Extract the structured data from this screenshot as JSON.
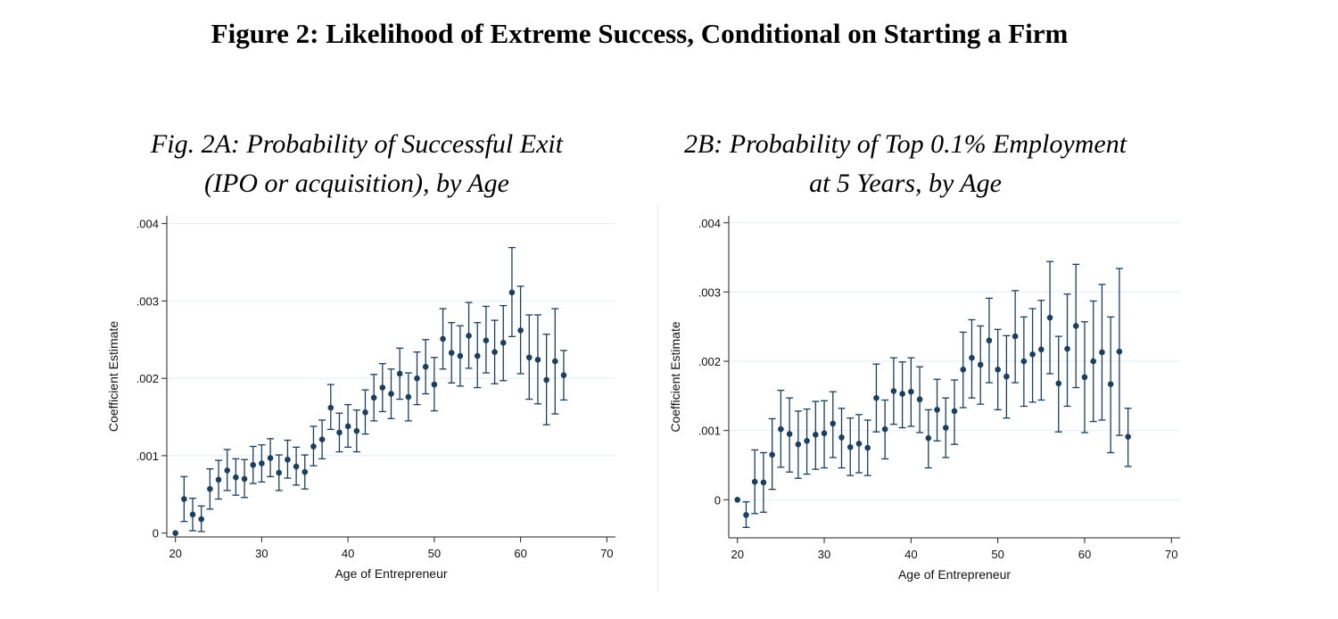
{
  "figure": {
    "title": "Figure 2: Likelihood of Extreme Success, Conditional on Starting a Firm"
  },
  "colors": {
    "marker": "#1c3f5e",
    "grid": "#e2eef3",
    "axis": "#222222"
  },
  "chart_data": [
    {
      "type": "scatter",
      "title_line1": "Fig. 2A: Probability of Successful Exit",
      "title_line2": "(IPO or acquisition), by Age",
      "xlabel": "Age of Entrepreneur",
      "ylabel": "Coefficient Estimate",
      "xlim": [
        19,
        71
      ],
      "ylim": [
        -5e-05,
        0.0041
      ],
      "xticks": [
        20,
        30,
        40,
        50,
        60,
        70
      ],
      "xtick_labels": [
        "20",
        "30",
        "40",
        "50",
        "60",
        "70"
      ],
      "yticks": [
        0,
        0.001,
        0.002,
        0.003,
        0.004
      ],
      "ytick_labels": [
        "0",
        ".001",
        ".002",
        ".003",
        ".004"
      ],
      "gridlines": [
        0.001,
        0.002,
        0.003,
        0.004
      ],
      "x": [
        20,
        21,
        22,
        23,
        24,
        25,
        26,
        27,
        28,
        29,
        30,
        31,
        32,
        33,
        34,
        35,
        36,
        37,
        38,
        39,
        40,
        41,
        42,
        43,
        44,
        45,
        46,
        47,
        48,
        49,
        50,
        51,
        52,
        53,
        54,
        55,
        56,
        57,
        58,
        59,
        60,
        61,
        62,
        63,
        64,
        65
      ],
      "values": [
        0.0,
        0.00044,
        0.00024,
        0.00018,
        0.00057,
        0.00069,
        0.00081,
        0.00072,
        0.0007,
        0.00088,
        0.0009,
        0.00097,
        0.00078,
        0.00095,
        0.00086,
        0.00079,
        0.00112,
        0.00121,
        0.00162,
        0.0013,
        0.00138,
        0.00132,
        0.00156,
        0.00175,
        0.00188,
        0.0018,
        0.00206,
        0.00176,
        0.002,
        0.00215,
        0.00192,
        0.00251,
        0.00233,
        0.00229,
        0.00255,
        0.00229,
        0.00249,
        0.00234,
        0.00246,
        0.00311,
        0.00262,
        0.00227,
        0.00224,
        0.00198,
        0.00222,
        0.00204
      ],
      "ci_low": [
        0.0,
        0.00015,
        3e-05,
        2e-05,
        0.00031,
        0.00044,
        0.00055,
        0.00049,
        0.00046,
        0.00064,
        0.00066,
        0.00073,
        0.00055,
        0.00071,
        0.00062,
        0.00057,
        0.00087,
        0.00096,
        0.00134,
        0.00105,
        0.00111,
        0.00105,
        0.00128,
        0.00145,
        0.00157,
        0.00148,
        0.00173,
        0.00145,
        0.00166,
        0.0018,
        0.00158,
        0.00212,
        0.00194,
        0.0019,
        0.00213,
        0.00188,
        0.00207,
        0.00193,
        0.00197,
        0.00254,
        0.00206,
        0.00173,
        0.00167,
        0.0014,
        0.00154,
        0.00172
      ],
      "ci_high": [
        0.0,
        0.00073,
        0.00045,
        0.00035,
        0.00083,
        0.00094,
        0.00108,
        0.00096,
        0.00095,
        0.00112,
        0.00114,
        0.00122,
        0.00101,
        0.0012,
        0.00111,
        0.00101,
        0.00138,
        0.00146,
        0.00192,
        0.00155,
        0.00166,
        0.00159,
        0.00185,
        0.00205,
        0.00219,
        0.00212,
        0.00239,
        0.00207,
        0.00234,
        0.0025,
        0.00227,
        0.0029,
        0.00272,
        0.00268,
        0.00298,
        0.00272,
        0.00293,
        0.00275,
        0.00294,
        0.00369,
        0.00319,
        0.00282,
        0.00282,
        0.00257,
        0.0029,
        0.00236
      ]
    },
    {
      "type": "scatter",
      "title_line1": "2B: Probability of Top 0.1% Employment",
      "title_line2": "at 5 Years, by Age",
      "xlabel": "Age of Entrepreneur",
      "ylabel": "Coefficient Estimate",
      "xlim": [
        19,
        71
      ],
      "ylim": [
        -0.00055,
        0.0041
      ],
      "xticks": [
        20,
        30,
        40,
        50,
        60,
        70
      ],
      "xtick_labels": [
        "20",
        "30",
        "40",
        "50",
        "60",
        "70"
      ],
      "yticks": [
        0,
        0.001,
        0.002,
        0.003,
        0.004
      ],
      "ytick_labels": [
        "0",
        ".001",
        ".002",
        ".003",
        ".004"
      ],
      "gridlines": [
        0,
        0.001,
        0.002,
        0.003,
        0.004
      ],
      "x": [
        20,
        21,
        22,
        23,
        24,
        25,
        26,
        27,
        28,
        29,
        30,
        31,
        32,
        33,
        34,
        35,
        36,
        37,
        38,
        39,
        40,
        41,
        42,
        43,
        44,
        45,
        46,
        47,
        48,
        49,
        50,
        51,
        52,
        53,
        54,
        55,
        56,
        57,
        58,
        59,
        60,
        61,
        62,
        63,
        64,
        65
      ],
      "values": [
        0.0,
        -0.00022,
        0.00026,
        0.00025,
        0.00065,
        0.00102,
        0.00095,
        0.0008,
        0.00085,
        0.00094,
        0.00096,
        0.0011,
        0.0009,
        0.00076,
        0.00081,
        0.00075,
        0.00147,
        0.00102,
        0.00157,
        0.00153,
        0.00156,
        0.00145,
        0.00089,
        0.0013,
        0.00104,
        0.00128,
        0.00188,
        0.00205,
        0.00195,
        0.0023,
        0.00188,
        0.00178,
        0.00236,
        0.002,
        0.0021,
        0.00217,
        0.00263,
        0.00168,
        0.00218,
        0.00251,
        0.00177,
        0.002,
        0.00213,
        0.00167,
        0.00214,
        0.00091
      ],
      "ci_low": [
        0.0,
        -0.0004,
        -0.0002,
        -0.00018,
        0.00015,
        0.00047,
        0.0004,
        0.00031,
        0.00037,
        0.00044,
        0.00046,
        0.00061,
        0.00046,
        0.00035,
        0.00039,
        0.00035,
        0.00098,
        0.00059,
        0.00109,
        0.00104,
        0.00106,
        0.00097,
        0.00046,
        0.00085,
        0.00061,
        0.0008,
        0.00133,
        0.00147,
        0.00138,
        0.00169,
        0.0013,
        0.00118,
        0.00169,
        0.00135,
        0.00141,
        0.00144,
        0.00182,
        0.00098,
        0.00135,
        0.00162,
        0.00097,
        0.00113,
        0.00115,
        0.00068,
        0.00093,
        0.00048
      ],
      "ci_high": [
        0.0,
        -3e-05,
        0.00072,
        0.00068,
        0.00117,
        0.00158,
        0.00147,
        0.00128,
        0.00131,
        0.00142,
        0.00143,
        0.00156,
        0.00132,
        0.00118,
        0.00123,
        0.00115,
        0.00196,
        0.00144,
        0.00205,
        0.00199,
        0.00205,
        0.00192,
        0.0013,
        0.00174,
        0.00147,
        0.00173,
        0.00242,
        0.0026,
        0.00251,
        0.00291,
        0.00246,
        0.00237,
        0.00302,
        0.00264,
        0.00276,
        0.00288,
        0.00344,
        0.00236,
        0.00297,
        0.0034,
        0.00257,
        0.00287,
        0.00311,
        0.00264,
        0.00334,
        0.00132
      ]
    }
  ]
}
